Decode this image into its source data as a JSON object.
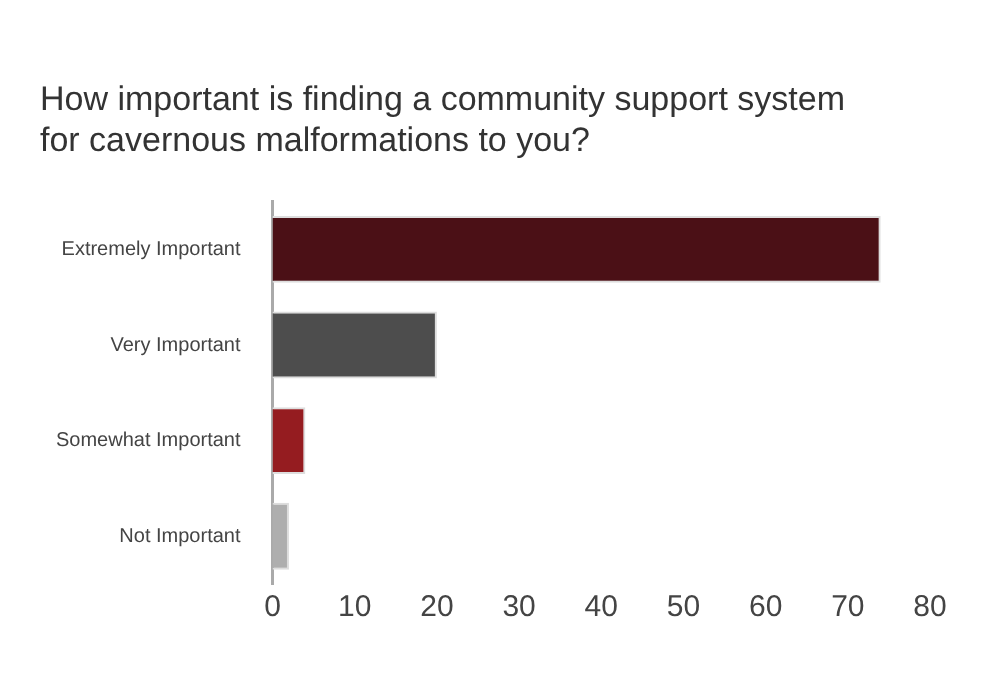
{
  "chart_data": {
    "type": "bar",
    "orientation": "horizontal",
    "title": [
      "How important is finding a community support system",
      "for cavernous malformations to you?"
    ],
    "categories": [
      "Extremely Important",
      "Very Important",
      "Somewhat Important",
      "Not Important"
    ],
    "values": [
      74,
      20,
      4,
      2
    ],
    "colors": [
      "#4b1016",
      "#4d4d4d",
      "#951c20",
      "#aeaeae"
    ],
    "xlim": [
      0,
      80
    ],
    "xticks": [
      0,
      10,
      20,
      30,
      40,
      50,
      60,
      70,
      80
    ],
    "grid": false,
    "legend": false
  }
}
